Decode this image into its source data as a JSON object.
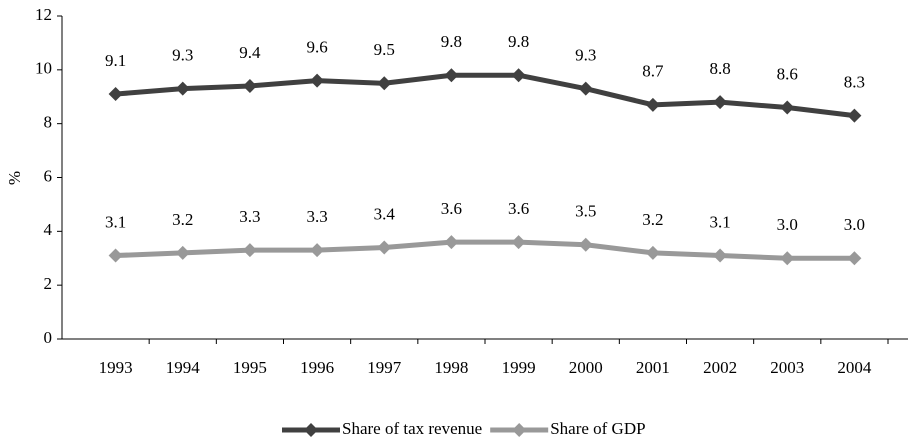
{
  "chart_data": {
    "type": "line",
    "y_label": "%",
    "categories": [
      "1993",
      "1994",
      "1995",
      "1996",
      "1997",
      "1998",
      "1999",
      "2000",
      "2001",
      "2002",
      "2003",
      "2004"
    ],
    "series": [
      {
        "name": "Share of tax revenue",
        "color": "#404040",
        "values": [
          9.1,
          9.3,
          9.4,
          9.6,
          9.5,
          9.8,
          9.8,
          9.3,
          8.7,
          8.8,
          8.6,
          8.3
        ],
        "value_labels": [
          "9.1",
          "9.3",
          "9.4",
          "9.6",
          "9.5",
          "9.8",
          "9.8",
          "9.3",
          "8.7",
          "8.8",
          "8.6",
          "8.3"
        ]
      },
      {
        "name": "Share of GDP",
        "color": "#999999",
        "values": [
          3.1,
          3.2,
          3.3,
          3.3,
          3.4,
          3.6,
          3.6,
          3.5,
          3.2,
          3.1,
          3.0,
          3.0
        ],
        "value_labels": [
          "3.1",
          "3.2",
          "3.3",
          "3.3",
          "3.4",
          "3.6",
          "3.6",
          "3.5",
          "3.2",
          "3.1",
          "3.0",
          "3.0"
        ]
      }
    ],
    "ylim": [
      0,
      12
    ],
    "yticks": [
      0,
      2,
      4,
      6,
      8,
      10,
      12
    ],
    "legend": "bottom"
  }
}
